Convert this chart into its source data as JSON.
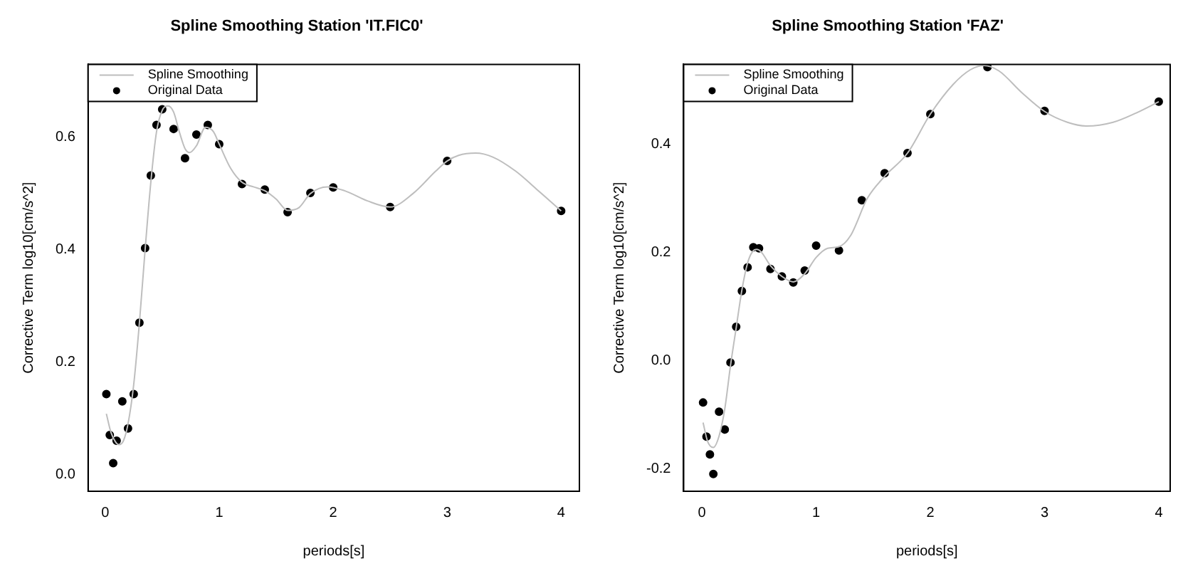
{
  "chart_data": [
    {
      "type": "scatter",
      "title": "Spline Smoothing Station 'IT.FIC0'",
      "xlabel": "periods[s]",
      "ylabel": "Corrective Term log10[cm/s^2]",
      "xlim": [
        -0.15,
        4.16
      ],
      "xticks": [
        0,
        1,
        2,
        3,
        4
      ],
      "ylim": [
        -0.03,
        0.73
      ],
      "yticks": [
        {
          "value": 0,
          "label": "0.0"
        },
        0.2,
        0.4,
        0.6
      ],
      "grid": false,
      "legend": "top left",
      "series": [
        {
          "name": "Spline Smoothing",
          "type": "line",
          "color": "#bebebe",
          "marker": "none",
          "line_style": "solid",
          "x": [
            0.01,
            0.05,
            0.09,
            0.12,
            0.16,
            0.2,
            0.25,
            0.3,
            0.35,
            0.4,
            0.45,
            0.5,
            0.55,
            0.6,
            0.65,
            0.7,
            0.74,
            0.8,
            0.88,
            0.95,
            1.0,
            1.1,
            1.2,
            1.3,
            1.4,
            1.5,
            1.6,
            1.7,
            1.8,
            1.95,
            2.1,
            2.3,
            2.5,
            2.7,
            2.9,
            3.0,
            3.1,
            3.25,
            3.4,
            3.6,
            3.8,
            4.0
          ],
          "values": [
            0.108,
            0.075,
            0.058,
            0.053,
            0.06,
            0.09,
            0.16,
            0.27,
            0.4,
            0.52,
            0.61,
            0.648,
            0.656,
            0.645,
            0.61,
            0.58,
            0.573,
            0.585,
            0.618,
            0.61,
            0.588,
            0.545,
            0.52,
            0.512,
            0.505,
            0.49,
            0.47,
            0.475,
            0.5,
            0.512,
            0.505,
            0.487,
            0.476,
            0.5,
            0.54,
            0.558,
            0.568,
            0.572,
            0.565,
            0.54,
            0.505,
            0.469
          ]
        },
        {
          "name": "Original Data",
          "type": "scatter",
          "color": "#000000",
          "marker": "circle",
          "x": [
            0.01,
            0.04,
            0.07,
            0.1,
            0.15,
            0.2,
            0.25,
            0.3,
            0.35,
            0.4,
            0.45,
            0.5,
            0.6,
            0.7,
            0.8,
            0.9,
            1.0,
            1.2,
            1.4,
            1.6,
            1.8,
            2.0,
            2.5,
            3.0,
            4.0
          ],
          "values": [
            0.143,
            0.07,
            0.02,
            0.06,
            0.13,
            0.082,
            0.143,
            0.27,
            0.403,
            0.532,
            0.622,
            0.65,
            0.615,
            0.563,
            0.605,
            0.622,
            0.588,
            0.517,
            0.507,
            0.467,
            0.501,
            0.511,
            0.476,
            0.558,
            0.469
          ]
        }
      ]
    },
    {
      "type": "scatter",
      "title": "Spline Smoothing Station 'FAZ'",
      "xlabel": "periods[s]",
      "ylabel": "Corrective Term log10[cm/s^2]",
      "xlim": [
        -0.16,
        4.1
      ],
      "xticks": [
        0,
        1,
        2,
        3,
        4
      ],
      "ylim": [
        -0.242,
        0.547
      ],
      "yticks": [
        -0.2,
        {
          "value": 0,
          "label": "0.0"
        },
        0.2,
        0.4
      ],
      "grid": false,
      "legend": "top left",
      "series": [
        {
          "name": "Spline Smoothing",
          "type": "line",
          "color": "#bebebe",
          "marker": "none",
          "line_style": "solid",
          "x": [
            0.01,
            0.05,
            0.1,
            0.15,
            0.2,
            0.25,
            0.3,
            0.35,
            0.4,
            0.44,
            0.48,
            0.52,
            0.6,
            0.7,
            0.8,
            0.9,
            1.0,
            1.1,
            1.2,
            1.3,
            1.45,
            1.6,
            1.8,
            2.0,
            2.2,
            2.35,
            2.47,
            2.6,
            2.8,
            3.0,
            3.2,
            3.37,
            3.6,
            3.8,
            4.0
          ],
          "values": [
            -0.115,
            -0.15,
            -0.161,
            -0.14,
            -0.09,
            -0.01,
            0.06,
            0.13,
            0.18,
            0.2,
            0.205,
            0.2,
            0.175,
            0.155,
            0.145,
            0.16,
            0.19,
            0.207,
            0.21,
            0.23,
            0.3,
            0.34,
            0.383,
            0.455,
            0.51,
            0.537,
            0.545,
            0.535,
            0.495,
            0.46,
            0.44,
            0.433,
            0.44,
            0.457,
            0.478
          ]
        },
        {
          "name": "Original Data",
          "type": "scatter",
          "color": "#000000",
          "marker": "circle",
          "x": [
            0.01,
            0.04,
            0.07,
            0.1,
            0.15,
            0.2,
            0.25,
            0.3,
            0.35,
            0.4,
            0.45,
            0.5,
            0.6,
            0.7,
            0.8,
            0.9,
            1.0,
            1.2,
            1.4,
            1.6,
            1.8,
            2.0,
            2.5,
            3.0,
            4.0
          ],
          "values": [
            -0.078,
            -0.141,
            -0.174,
            -0.21,
            -0.095,
            -0.128,
            -0.004,
            0.062,
            0.128,
            0.172,
            0.209,
            0.207,
            0.169,
            0.155,
            0.144,
            0.166,
            0.212,
            0.203,
            0.296,
            0.346,
            0.383,
            0.455,
            0.542,
            0.461,
            0.478
          ]
        }
      ]
    }
  ]
}
